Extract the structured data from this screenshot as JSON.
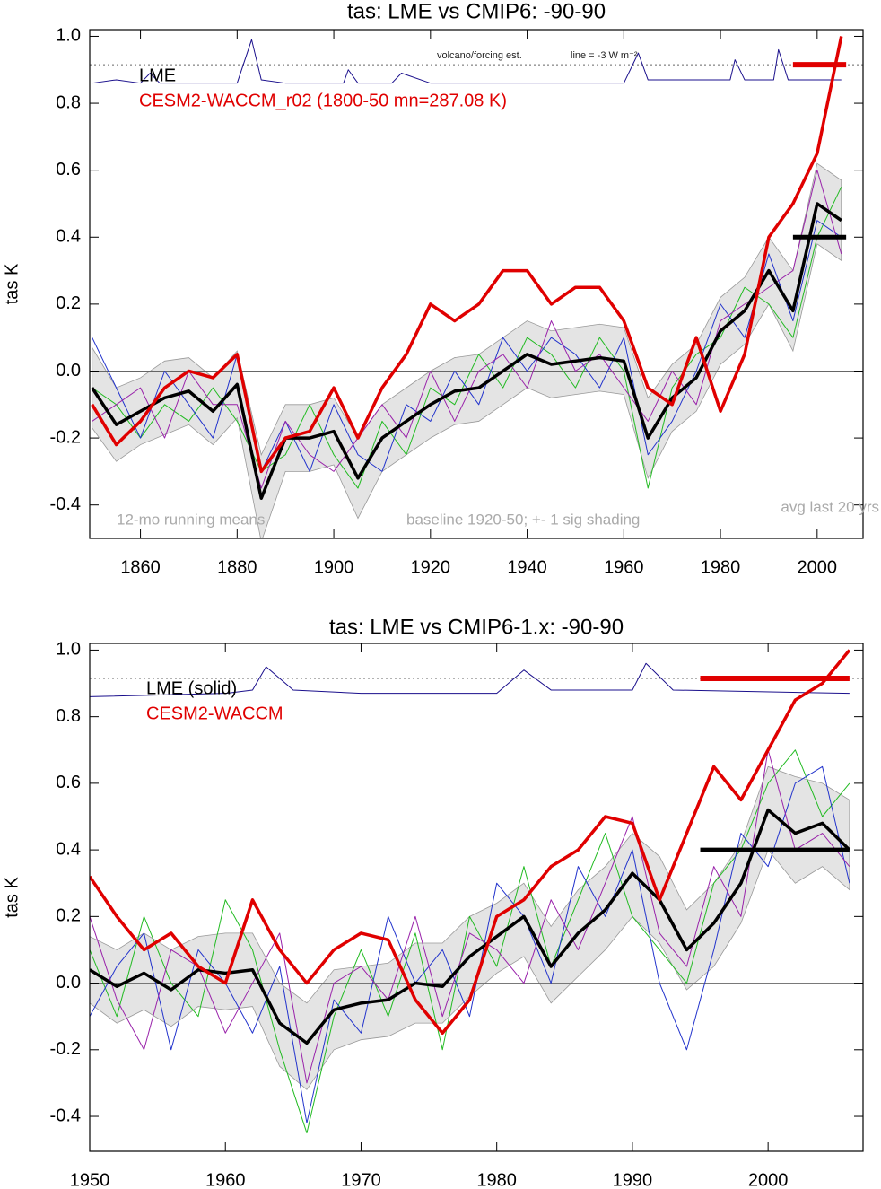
{
  "chart_data": [
    {
      "type": "line",
      "title": "tas: LME vs CMIP6: -90-90",
      "ylabel": "tas K",
      "xlim": [
        1849.5,
        2009.5
      ],
      "ylim": [
        -0.5,
        1.02
      ],
      "xticks": [
        1860,
        1880,
        1900,
        1920,
        1940,
        1960,
        1980,
        2000
      ],
      "yticks": [
        -0.4,
        -0.2,
        {
          "value": 0,
          "label": "0.0"
        },
        0.2,
        0.4,
        0.6,
        0.8,
        {
          "value": 1,
          "label": "1.0"
        }
      ],
      "annotations": [
        "volcano/forcing est.",
        "line = -3 W m⁻²",
        "12-mo running means",
        "baseline 1920-50; +- 1 sig shading",
        "avg last 20 yrs"
      ],
      "x": [
        1850,
        1855,
        1860,
        1865,
        1870,
        1875,
        1880,
        1885,
        1890,
        1895,
        1900,
        1905,
        1910,
        1915,
        1920,
        1925,
        1930,
        1935,
        1940,
        1945,
        1950,
        1955,
        1960,
        1965,
        1970,
        1975,
        1980,
        1985,
        1990,
        1995,
        2000,
        2005
      ],
      "band": {
        "color": "#e4e4e4",
        "upper": [
          0.07,
          -0.05,
          -0.02,
          0.03,
          0.04,
          -0.02,
          0.06,
          -0.25,
          -0.1,
          -0.1,
          -0.08,
          -0.2,
          -0.1,
          -0.05,
          0.0,
          0.04,
          0.05,
          0.1,
          0.15,
          0.12,
          0.13,
          0.14,
          0.13,
          -0.08,
          0.02,
          0.08,
          0.22,
          0.28,
          0.4,
          0.3,
          0.62,
          0.57
        ],
        "lower": [
          -0.17,
          -0.27,
          -0.22,
          -0.19,
          -0.16,
          -0.22,
          -0.14,
          -0.51,
          -0.3,
          -0.3,
          -0.28,
          -0.44,
          -0.3,
          -0.25,
          -0.2,
          -0.16,
          -0.15,
          -0.1,
          -0.05,
          -0.08,
          -0.07,
          -0.06,
          -0.07,
          -0.32,
          -0.18,
          -0.12,
          0.02,
          0.08,
          0.2,
          0.06,
          0.38,
          0.33
        ]
      },
      "reference_lines": [
        {
          "y": 0,
          "color": "#666666",
          "width": 1
        },
        {
          "y": 0.915,
          "color": "#666666",
          "width": 1,
          "dash": true
        },
        {
          "y": 0.4,
          "x": [
            1995,
            2006
          ],
          "color": "#000000",
          "width": 5
        },
        {
          "y": 0.915,
          "x": [
            1995,
            2006
          ],
          "color": "#e00000",
          "width": 6
        }
      ],
      "series": [
        {
          "color": "#22bb22",
          "width": 1,
          "values": [
            -0.05,
            -0.1,
            -0.2,
            -0.1,
            -0.15,
            -0.05,
            -0.15,
            -0.3,
            -0.25,
            -0.1,
            -0.25,
            -0.35,
            -0.15,
            -0.25,
            -0.05,
            -0.1,
            0.05,
            -0.05,
            0.1,
            0.05,
            -0.05,
            0.1,
            0.0,
            -0.35,
            -0.05,
            0.05,
            0.1,
            0.25,
            0.2,
            0.1,
            0.4,
            0.55
          ]
        },
        {
          "color": "#2233cc",
          "width": 1,
          "values": [
            0.1,
            -0.05,
            -0.2,
            0.0,
            -0.1,
            -0.2,
            0.05,
            -0.3,
            -0.15,
            -0.3,
            -0.1,
            -0.25,
            -0.3,
            -0.1,
            -0.15,
            0.0,
            -0.1,
            0.1,
            0.0,
            0.1,
            0.05,
            -0.05,
            0.1,
            -0.25,
            -0.15,
            0.0,
            0.2,
            0.1,
            0.35,
            0.15,
            0.45,
            0.4
          ]
        },
        {
          "color": "#9922aa",
          "width": 1,
          "values": [
            -0.15,
            -0.1,
            -0.05,
            -0.2,
            0.0,
            -0.1,
            -0.1,
            -0.35,
            -0.15,
            -0.25,
            -0.3,
            -0.2,
            -0.1,
            -0.2,
            0.0,
            -0.15,
            0.0,
            0.05,
            -0.05,
            0.15,
            0.0,
            0.05,
            -0.05,
            -0.15,
            0.0,
            -0.1,
            0.15,
            0.2,
            0.25,
            0.3,
            0.6,
            0.35
          ]
        },
        {
          "color": "#1a0f8c",
          "width": 1,
          "x": [
            1850,
            1855,
            1860,
            1862,
            1864,
            1880,
            1883,
            1885,
            1890,
            1902,
            1903,
            1905,
            1912,
            1914,
            1920,
            1960,
            1963,
            1965,
            1975,
            1982,
            1983,
            1985,
            1991,
            1992,
            1994,
            2005
          ],
          "values": [
            0.86,
            0.87,
            0.86,
            0.89,
            0.86,
            0.86,
            0.99,
            0.87,
            0.86,
            0.86,
            0.9,
            0.86,
            0.86,
            0.89,
            0.86,
            0.86,
            0.95,
            0.87,
            0.87,
            0.87,
            0.93,
            0.87,
            0.87,
            0.96,
            0.87,
            0.87
          ]
        },
        {
          "name": "LME",
          "color": "#000000",
          "width": 3.5,
          "values": [
            -0.05,
            -0.16,
            -0.12,
            -0.08,
            -0.06,
            -0.12,
            -0.04,
            -0.38,
            -0.2,
            -0.2,
            -0.18,
            -0.32,
            -0.2,
            -0.15,
            -0.1,
            -0.06,
            -0.05,
            0.0,
            0.05,
            0.02,
            0.03,
            0.04,
            0.03,
            -0.2,
            -0.08,
            -0.02,
            0.12,
            0.18,
            0.3,
            0.18,
            0.5,
            0.45
          ]
        },
        {
          "name": "CESM2-WACCM_r02 (1800-50 mn=287.08 K)",
          "color": "#e00000",
          "width": 3.5,
          "values": [
            -0.1,
            -0.22,
            -0.15,
            -0.05,
            0.0,
            -0.02,
            0.05,
            -0.3,
            -0.2,
            -0.18,
            -0.05,
            -0.2,
            -0.05,
            0.05,
            0.2,
            0.15,
            0.2,
            0.3,
            0.3,
            0.2,
            0.25,
            0.25,
            0.15,
            -0.05,
            -0.1,
            0.1,
            -0.12,
            0.05,
            0.4,
            0.5,
            0.65,
            1.0
          ]
        }
      ]
    },
    {
      "type": "line",
      "title": "tas: LME vs CMIP6-1.x: -90-90",
      "ylabel": "tas K",
      "xlim": [
        1950,
        2007
      ],
      "ylim": [
        -0.505,
        1.02
      ],
      "xticks": [
        1950,
        1960,
        1970,
        1980,
        1990,
        2000
      ],
      "yticks": [
        -0.4,
        -0.2,
        {
          "value": 0,
          "label": "0.0"
        },
        0.2,
        0.4,
        0.6,
        0.8,
        {
          "value": 1,
          "label": "1.0"
        }
      ],
      "x": [
        1950,
        1952,
        1954,
        1956,
        1958,
        1960,
        1962,
        1964,
        1966,
        1968,
        1970,
        1972,
        1974,
        1976,
        1978,
        1980,
        1982,
        1984,
        1986,
        1988,
        1990,
        1992,
        1994,
        1996,
        1998,
        2000,
        2002,
        2004,
        2006
      ],
      "band": {
        "color": "#e4e4e4",
        "upper": [
          0.14,
          0.1,
          0.15,
          0.1,
          0.14,
          0.15,
          0.15,
          0.0,
          -0.06,
          0.04,
          0.05,
          0.06,
          0.12,
          0.12,
          0.2,
          0.24,
          0.3,
          0.17,
          0.28,
          0.35,
          0.45,
          0.38,
          0.22,
          0.3,
          0.42,
          0.65,
          0.62,
          0.6,
          0.55
        ],
        "lower": [
          -0.06,
          -0.12,
          -0.08,
          -0.13,
          -0.07,
          -0.08,
          -0.07,
          -0.25,
          -0.32,
          -0.2,
          -0.17,
          -0.16,
          -0.12,
          -0.12,
          -0.04,
          0.03,
          0.08,
          -0.06,
          0.02,
          0.1,
          0.2,
          0.12,
          -0.02,
          0.05,
          0.18,
          0.4,
          0.3,
          0.35,
          0.28
        ]
      },
      "reference_lines": [
        {
          "y": 0,
          "color": "#666666",
          "width": 1
        },
        {
          "y": 0.915,
          "color": "#666666",
          "width": 1,
          "dash": true
        },
        {
          "y": 0.4,
          "x": [
            1995,
            2006
          ],
          "color": "#000000",
          "width": 5
        },
        {
          "y": 0.915,
          "x": [
            1995,
            2006
          ],
          "color": "#e00000",
          "width": 6
        }
      ],
      "series": [
        {
          "color": "#22bb22",
          "width": 1,
          "values": [
            0.1,
            -0.1,
            0.2,
            0.0,
            -0.1,
            0.25,
            0.1,
            -0.2,
            -0.45,
            -0.1,
            0.1,
            -0.1,
            0.15,
            -0.2,
            0.2,
            0.05,
            0.35,
            0.05,
            0.25,
            0.45,
            0.2,
            0.1,
            0.0,
            0.3,
            0.4,
            0.6,
            0.7,
            0.5,
            0.6
          ]
        },
        {
          "color": "#2233cc",
          "width": 1,
          "values": [
            -0.1,
            0.05,
            0.15,
            -0.2,
            0.1,
            0.0,
            -0.15,
            0.05,
            -0.42,
            -0.05,
            -0.15,
            0.2,
            0.0,
            0.1,
            -0.1,
            0.3,
            0.2,
            0.0,
            0.35,
            0.2,
            0.4,
            0.0,
            -0.2,
            0.1,
            0.45,
            0.35,
            0.6,
            0.65,
            0.3
          ]
        },
        {
          "color": "#9922aa",
          "width": 1,
          "values": [
            0.2,
            -0.05,
            -0.2,
            0.1,
            0.05,
            -0.15,
            0.0,
            0.15,
            -0.3,
            0.0,
            0.05,
            -0.05,
            0.2,
            -0.1,
            0.15,
            0.1,
            0.0,
            0.25,
            0.1,
            0.3,
            0.5,
            0.15,
            0.05,
            0.35,
            0.2,
            0.7,
            0.4,
            0.45,
            0.35
          ]
        },
        {
          "color": "#1a0f8c",
          "width": 1,
          "x": [
            1950,
            1960,
            1962,
            1963,
            1965,
            1970,
            1980,
            1982,
            1984,
            1990,
            1991,
            1993,
            2006
          ],
          "values": [
            0.86,
            0.87,
            0.88,
            0.95,
            0.88,
            0.87,
            0.87,
            0.94,
            0.88,
            0.88,
            0.96,
            0.88,
            0.87
          ]
        },
        {
          "name": "LME (solid)",
          "color": "#000000",
          "width": 3.5,
          "values": [
            0.04,
            -0.01,
            0.03,
            -0.02,
            0.04,
            0.03,
            0.04,
            -0.12,
            -0.18,
            -0.08,
            -0.06,
            -0.05,
            0.0,
            -0.01,
            0.08,
            0.14,
            0.2,
            0.05,
            0.15,
            0.22,
            0.33,
            0.25,
            0.1,
            0.18,
            0.3,
            0.52,
            0.45,
            0.48,
            0.4
          ]
        },
        {
          "name": "CESM2-WACCM",
          "color": "#e00000",
          "width": 3.5,
          "values": [
            0.32,
            0.2,
            0.1,
            0.15,
            0.05,
            0.0,
            0.25,
            0.1,
            0.0,
            0.1,
            0.15,
            0.13,
            -0.05,
            -0.15,
            -0.05,
            0.2,
            0.25,
            0.35,
            0.4,
            0.5,
            0.48,
            0.25,
            0.45,
            0.65,
            0.55,
            0.7,
            0.85,
            0.9,
            1.0
          ]
        }
      ]
    }
  ]
}
